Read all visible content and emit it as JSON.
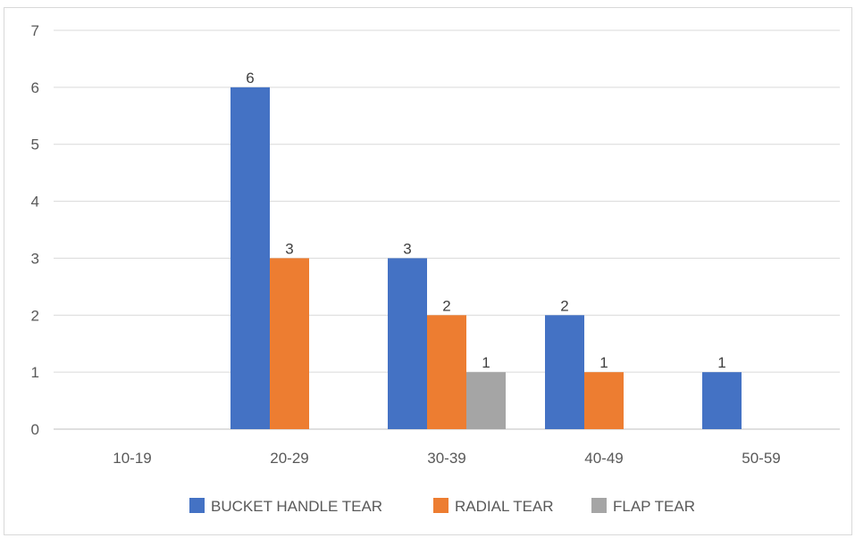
{
  "chart_data": {
    "type": "bar",
    "title": "",
    "xlabel": "",
    "ylabel": "",
    "categories": [
      "10-19",
      "20-29",
      "30-39",
      "40-49",
      "50-59"
    ],
    "series": [
      {
        "name": "BUCKET HANDLE TEAR",
        "color": "#4472c4",
        "values": [
          0,
          6,
          3,
          2,
          1
        ]
      },
      {
        "name": "RADIAL TEAR",
        "color": "#ed7d31",
        "values": [
          0,
          3,
          2,
          1,
          0
        ]
      },
      {
        "name": "FLAP TEAR",
        "color": "#a5a5a5",
        "values": [
          0,
          0,
          1,
          0,
          0
        ]
      }
    ],
    "ylim": [
      0,
      7
    ],
    "yticks": [
      0,
      1,
      2,
      3,
      4,
      5,
      6,
      7
    ],
    "grid": true,
    "legend_position": "bottom",
    "data_labels": true
  }
}
